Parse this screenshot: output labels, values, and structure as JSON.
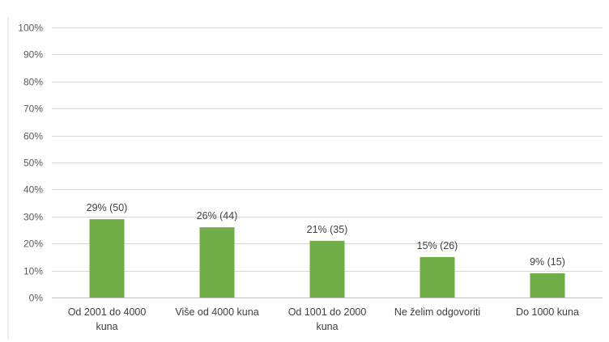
{
  "chart_data": {
    "type": "bar",
    "categories": [
      [
        "Od 2001 do 4000",
        "kuna"
      ],
      [
        "Više od 4000 kuna"
      ],
      [
        "Od 1001 do 2000",
        "kuna"
      ],
      [
        "Ne želim odgovoriti"
      ],
      [
        "Do 1000 kuna"
      ]
    ],
    "values": [
      29,
      26,
      21,
      15,
      9
    ],
    "data_labels": [
      "29% (50)",
      "26% (44)",
      "21% (35)",
      "15% (26)",
      "9% (15)"
    ],
    "y_ticks": [
      "0%",
      "10%",
      "20%",
      "30%",
      "40%",
      "50%",
      "60%",
      "70%",
      "80%",
      "90%",
      "100%"
    ],
    "ylim": [
      0,
      100
    ],
    "grid": true,
    "title": "",
    "xlabel": "",
    "ylabel": "",
    "bar_color": "#70ad47",
    "grid_color": "#d9d9d9"
  }
}
